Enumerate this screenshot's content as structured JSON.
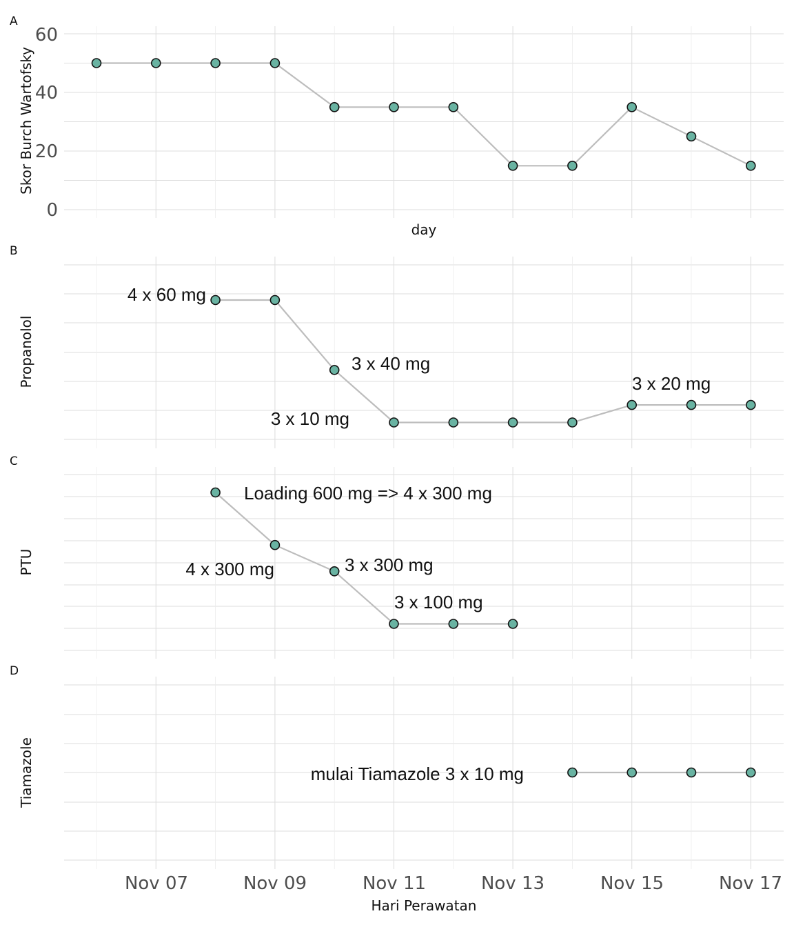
{
  "chart_data": [
    {
      "panel": "A",
      "type": "line",
      "ylabel": "Skor Burch Wartofsky",
      "xlabel": "day",
      "ylim": [
        0,
        60
      ],
      "yticks": [
        "0",
        "20",
        "40",
        "60"
      ],
      "x": [
        "2023-11-06",
        "2023-11-07",
        "2023-11-08",
        "2023-11-09",
        "2023-11-10",
        "2023-11-11",
        "2023-11-12",
        "2023-11-13",
        "2023-11-14",
        "2023-11-15",
        "2023-11-16",
        "2023-11-17"
      ],
      "y": [
        50,
        50,
        50,
        50,
        35,
        35,
        35,
        15,
        15,
        35,
        25,
        15
      ]
    },
    {
      "panel": "B",
      "type": "line",
      "ylabel": "Propanolol",
      "x": [
        "2023-11-08",
        "2023-11-09",
        "2023-11-10",
        "2023-11-11",
        "2023-11-12",
        "2023-11-13",
        "2023-11-14",
        "2023-11-15",
        "2023-11-16",
        "2023-11-17"
      ],
      "y": [
        240,
        240,
        120,
        30,
        30,
        30,
        30,
        60,
        60,
        60
      ],
      "annotations": [
        "4 x 60 mg",
        "3 x 40 mg",
        "3 x 10 mg",
        "3 x 20 mg"
      ]
    },
    {
      "panel": "C",
      "type": "line",
      "ylabel": "PTU",
      "x": [
        "2023-11-08",
        "2023-11-09",
        "2023-11-10",
        "2023-11-11",
        "2023-11-12",
        "2023-11-13"
      ],
      "y": [
        1800,
        1200,
        900,
        300,
        300,
        300
      ],
      "annotations": [
        "Loading 600 mg => 4 x 300 mg",
        "4 x 300 mg",
        "3 x 300 mg",
        "3 x 100 mg"
      ]
    },
    {
      "panel": "D",
      "type": "line",
      "ylabel": "Tiamazole",
      "xlabel": "Hari Perawatan",
      "x": [
        "2023-11-14",
        "2023-11-15",
        "2023-11-16",
        "2023-11-17"
      ],
      "y": [
        30,
        30,
        30,
        30
      ],
      "annotations": [
        "mulai Tiamazole 3 x 10 mg"
      ],
      "xticks": [
        "Nov 07",
        "Nov 09",
        "Nov 11",
        "Nov 13",
        "Nov 15",
        "Nov 17"
      ]
    }
  ],
  "colors": {
    "point_fill": "#69b3a2",
    "line": "#bdbdbd",
    "grid": "#dedede"
  }
}
